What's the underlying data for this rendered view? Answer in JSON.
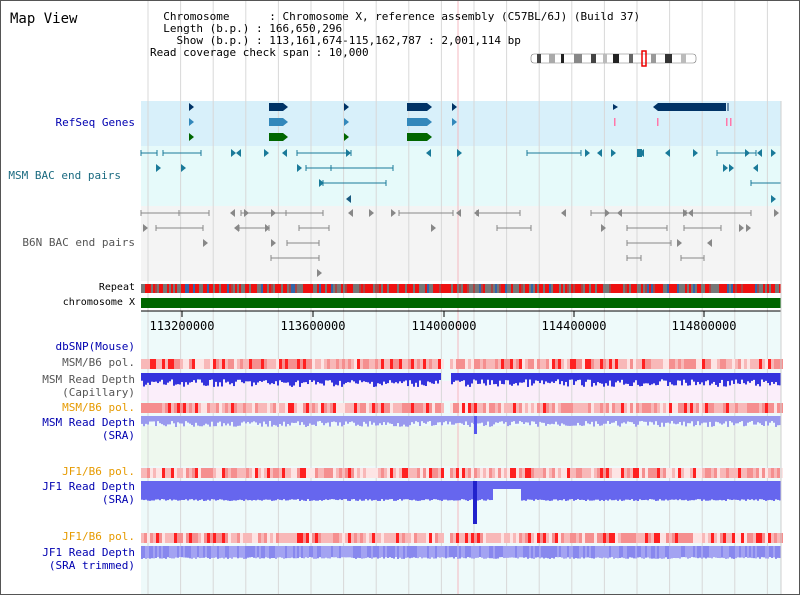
{
  "view_title": "Map View",
  "info": {
    "chromosome_key": "Chromosome",
    "chromosome_value": "Chromosome X, reference assembly (C57BL/6J) (Build 37)",
    "length_key": "Length (b.p.)",
    "length_value": "166,650,296",
    "show_key": "Show (b.p.)",
    "show_value": "113,161,674-115,162,787 : 2,001,114 bp",
    "coverage_key": "Read coverage check span",
    "coverage_value": "10,000"
  },
  "tracks": {
    "refseq": "RefSeq Genes",
    "msm_bac": "MSM BAC end pairs",
    "b6n_bac": "B6N BAC end pairs",
    "repeat": "Repeat",
    "chromosome": "chromosome X",
    "dbsnp": "dbSNP(Mouse)",
    "msm_b6_pol_1": "MSM/B6 pol.",
    "msm_depth_cap_1": "MSM Read Depth",
    "msm_depth_cap_2": "(Capillary)",
    "msm_b6_pol_2": "MSM/B6 pol.",
    "msm_depth_sra_1": "MSM Read Depth",
    "msm_depth_sra_2": "(SRA)",
    "jf1_b6_pol_1": "JF1/B6 pol.",
    "jf1_depth_sra_1": "JF1 Read Depth",
    "jf1_depth_sra_2": "(SRA)",
    "jf1_b6_pol_2": "JF1/B6 pol.",
    "jf1_depth_trim_1": "JF1 Read Depth",
    "jf1_depth_trim_2": "(SRA trimmed)"
  },
  "axis": {
    "ticks": [
      "113200000",
      "113600000",
      "114000000",
      "114400000",
      "114800000"
    ]
  },
  "colors": {
    "refseq_band": "#d8f0fa",
    "bac_band": "#e6fafa",
    "b6n_band": "#f4f4f4",
    "gene": "#003366",
    "chromosome_bar": "#006600",
    "depth_bar": "#3333dd",
    "sra_bar": "#9999ee",
    "pol": "#f2a0a0"
  }
}
